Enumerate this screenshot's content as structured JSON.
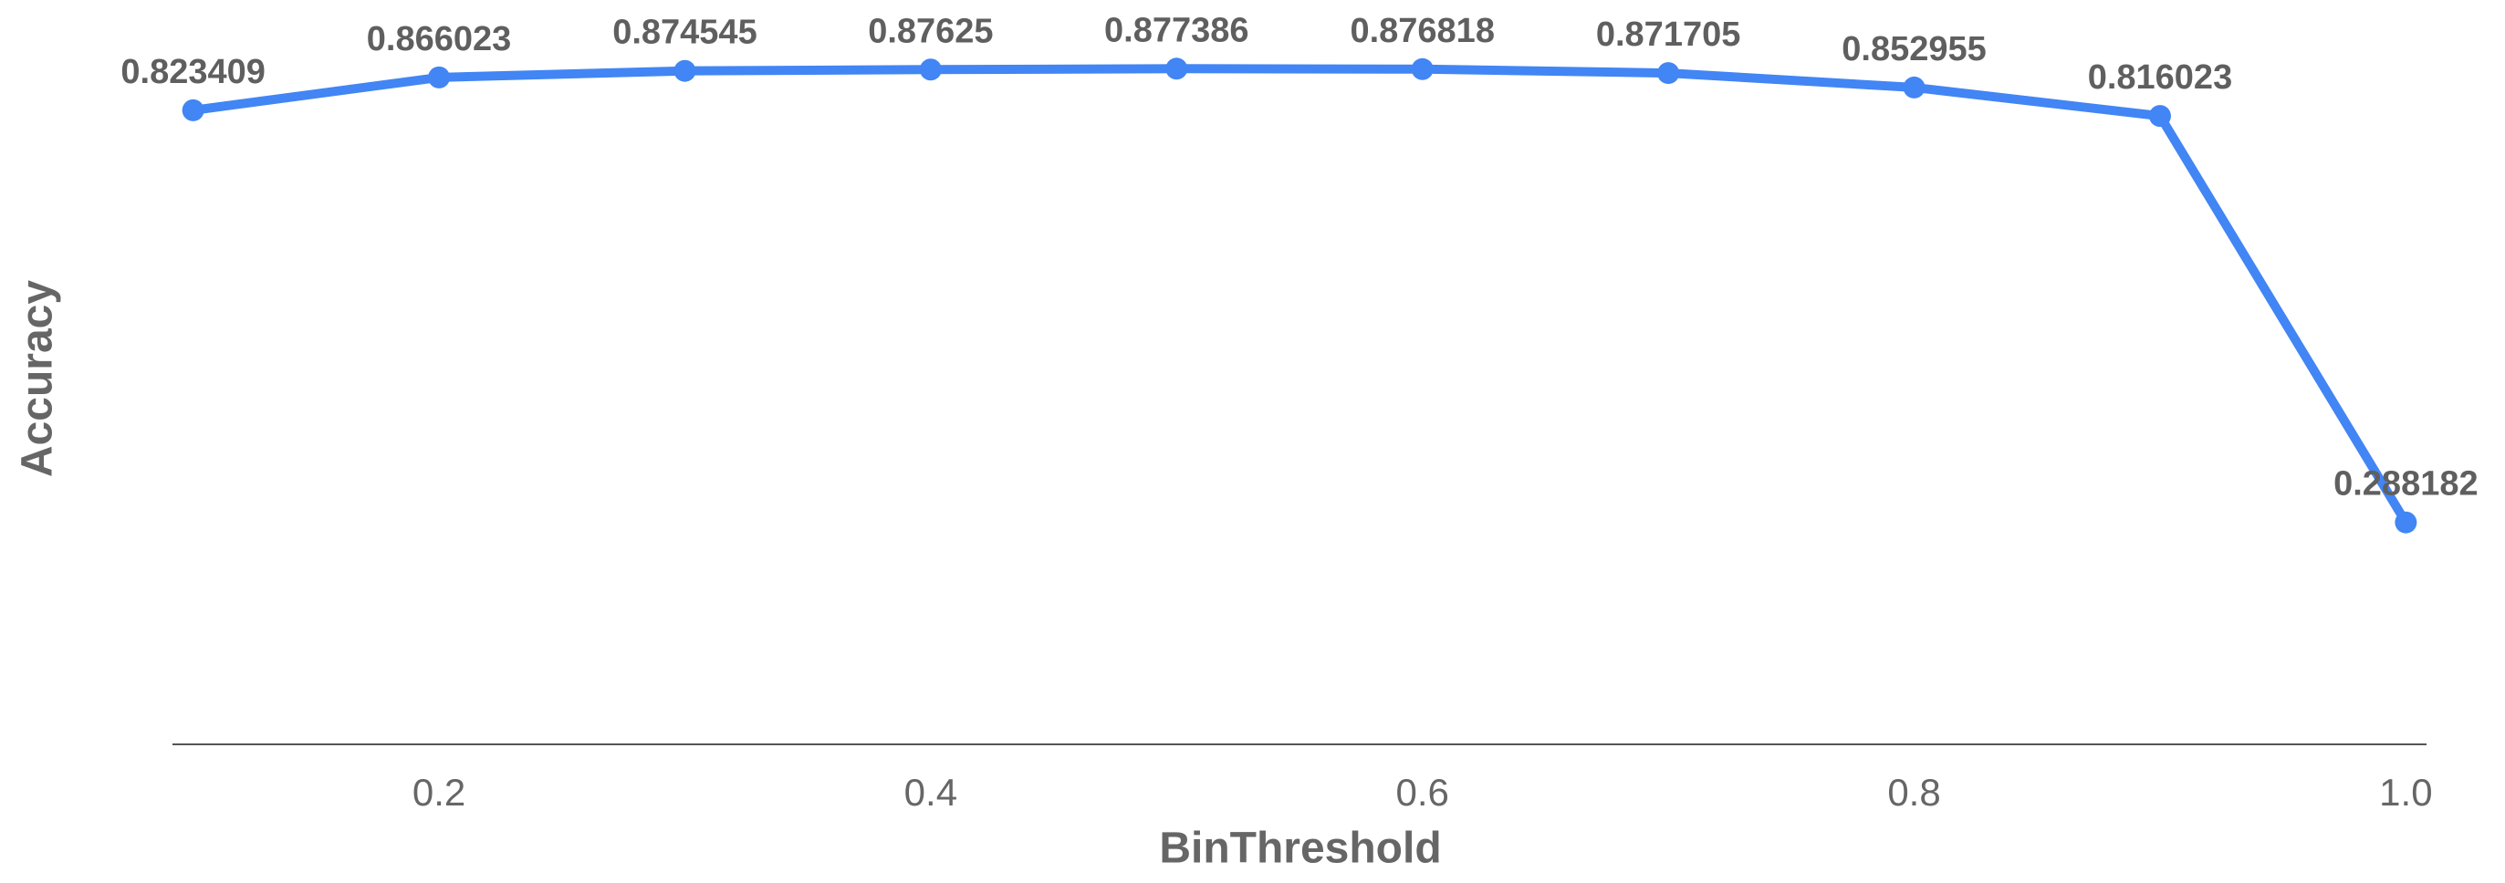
{
  "chart_data": {
    "type": "line",
    "x_label": "BinThreshold",
    "y_label": "Accuracy",
    "x": [
      0.1,
      0.2,
      0.3,
      0.4,
      0.5,
      0.6,
      0.7,
      0.8,
      0.9,
      1.0
    ],
    "series": [
      {
        "color": "#4285f4",
        "values": [
          0.823409,
          0.866023,
          0.874545,
          0.87625,
          0.877386,
          0.876818,
          0.871705,
          0.852955,
          0.816023,
          0.288182
        ]
      }
    ],
    "xlim": [
      0.0916,
      1.0084
    ],
    "ylim": [
      0,
      0.95
    ],
    "xticks": [
      0.2,
      0.4,
      0.6,
      0.8,
      {
        "value": 1,
        "label": "1.0"
      }
    ]
  }
}
